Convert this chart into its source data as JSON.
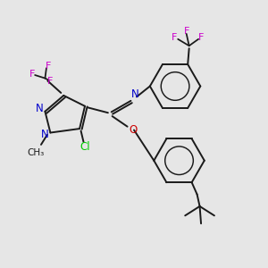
{
  "background_color": "#e6e6e6",
  "bond_color": "#1a1a1a",
  "nitrogen_color": "#0000cc",
  "oxygen_color": "#cc0000",
  "fluorine_color": "#cc00cc",
  "chlorine_color": "#00cc00",
  "figsize": [
    3.0,
    3.0
  ],
  "dpi": 100,
  "xlim": [
    0,
    10
  ],
  "ylim": [
    0,
    10
  ]
}
